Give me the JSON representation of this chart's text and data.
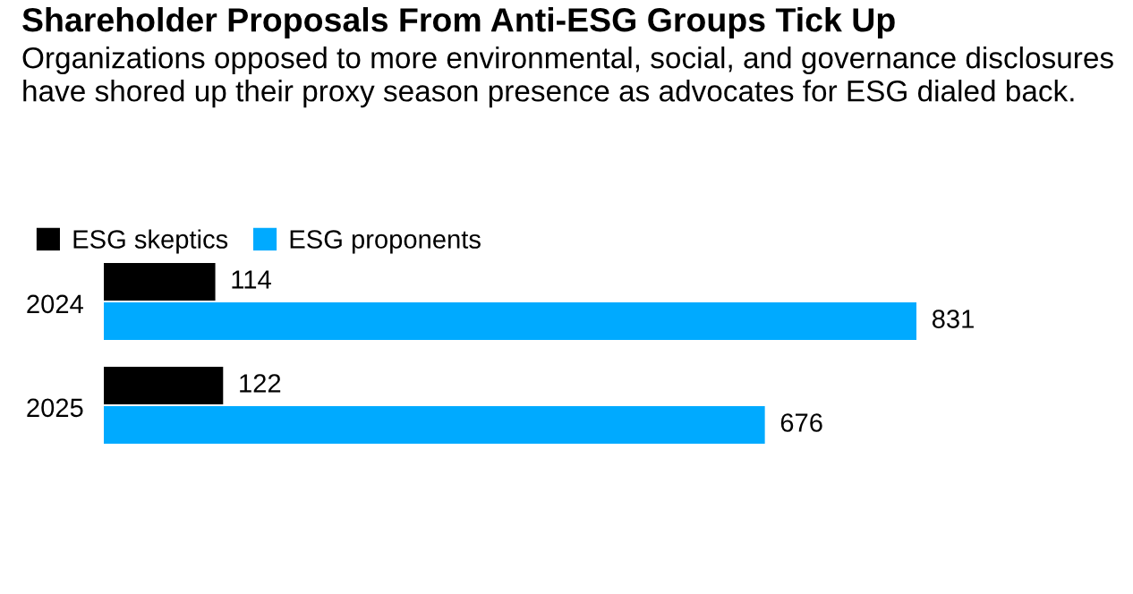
{
  "chart_data": {
    "type": "bar",
    "orientation": "horizontal",
    "title": "Shareholder Proposals From Anti-ESG Groups Tick Up",
    "subtitle": "Organizations opposed to more environmental, social, and governance disclosures have shored up their proxy season presence as advocates for ESG dialed back.",
    "categories": [
      "2024",
      "2025"
    ],
    "series": [
      {
        "name": "ESG skeptics",
        "color": "#000000",
        "values": [
          114,
          122
        ]
      },
      {
        "name": "ESG proponents",
        "color": "#00aaff",
        "values": [
          831,
          676
        ]
      }
    ],
    "data_labels": true,
    "legend": "top left",
    "grid": false
  }
}
